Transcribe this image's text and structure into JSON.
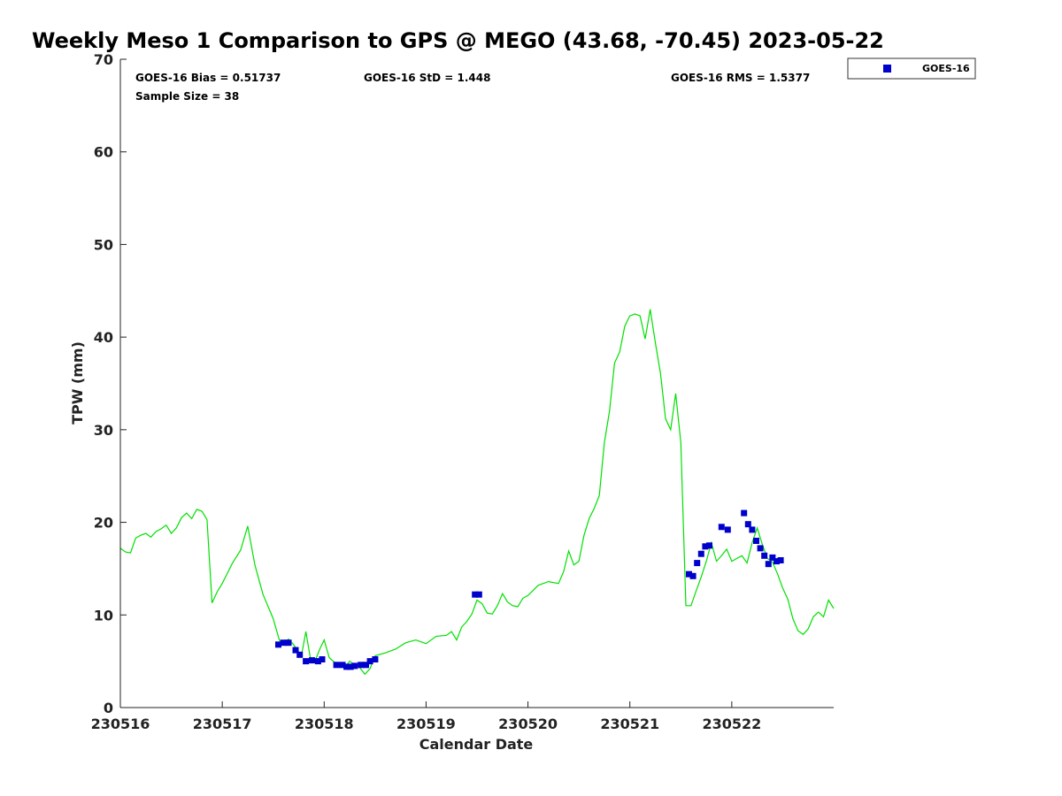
{
  "chart_data": {
    "type": "line",
    "title": "Weekly Meso 1 Comparison to GPS @ MEGO (43.68, -70.45) 2023-05-22",
    "xlabel": "Calendar Date",
    "ylabel": "TPW (mm)",
    "xlim": [
      230516,
      230523
    ],
    "ylim": [
      0,
      70
    ],
    "x_ticks": [
      230516,
      230517,
      230518,
      230519,
      230520,
      230521,
      230522
    ],
    "x_tick_labels": [
      "230516",
      "230517",
      "230518",
      "230519",
      "230520",
      "230521",
      "230522"
    ],
    "y_ticks": [
      0,
      10,
      20,
      30,
      40,
      50,
      60,
      70
    ],
    "y_tick_labels": [
      "0",
      "10",
      "20",
      "30",
      "40",
      "50",
      "60",
      "70"
    ],
    "stats": {
      "bias": "GOES-16 Bias = 0.51737",
      "std": "GOES-16 StD = 1.448",
      "rms": "GOES-16 RMS = 1.5377",
      "sample": "Sample Size = 38"
    },
    "legend": {
      "position": "outside-top-right",
      "entries": [
        {
          "name": "GOES-16",
          "color": "#0000cc",
          "marker": "square"
        }
      ]
    },
    "series": [
      {
        "kind": "line",
        "color": "#00e000",
        "x": [
          230516.0,
          230516.05,
          230516.1,
          230516.15,
          230516.2,
          230516.25,
          230516.3,
          230516.35,
          230516.4,
          230516.45,
          230516.5,
          230516.55,
          230516.6,
          230516.65,
          230516.7,
          230516.75,
          230516.8,
          230516.85,
          230516.9,
          230516.95,
          230517.0,
          230517.1,
          230517.18,
          230517.25,
          230517.32,
          230517.4,
          230517.5,
          230517.56,
          230517.6,
          230517.65,
          230517.7,
          230517.75,
          230517.78,
          230517.82,
          230517.87,
          230517.92,
          230517.96,
          230518.0,
          230518.05,
          230518.1,
          230518.15,
          230518.2,
          230518.25,
          230518.3,
          230518.35,
          230518.4,
          230518.45,
          230518.5,
          230518.6,
          230518.7,
          230518.8,
          230518.9,
          230519.0,
          230519.1,
          230519.2,
          230519.25,
          230519.3,
          230519.35,
          230519.4,
          230519.45,
          230519.5,
          230519.55,
          230519.6,
          230519.65,
          230519.7,
          230519.75,
          230519.8,
          230519.85,
          230519.9,
          230519.95,
          230520.0,
          230520.1,
          230520.2,
          230520.3,
          230520.35,
          230520.4,
          230520.45,
          230520.5,
          230520.55,
          230520.6,
          230520.65,
          230520.7,
          230520.75,
          230520.8,
          230520.85,
          230520.9,
          230520.95,
          230521.0,
          230521.05,
          230521.1,
          230521.15,
          230521.2,
          230521.25,
          230521.3,
          230521.35,
          230521.4,
          230521.45,
          230521.5,
          230521.55,
          230521.6,
          230521.65,
          230521.7,
          230521.75,
          230521.8,
          230521.85,
          230521.9,
          230521.95,
          230522.0,
          230522.05,
          230522.1,
          230522.15,
          230522.2,
          230522.25,
          230522.3,
          230522.35,
          230522.4,
          230522.45,
          230522.5,
          230522.55,
          230522.6,
          230522.65,
          230522.7,
          230522.75,
          230522.8,
          230522.85,
          230522.9,
          230522.95,
          230523.0
        ],
        "y": [
          17.2,
          16.8,
          16.7,
          18.3,
          18.6,
          18.8,
          18.4,
          19.0,
          19.3,
          19.7,
          18.8,
          19.4,
          20.5,
          21.0,
          20.4,
          21.4,
          21.2,
          20.3,
          11.3,
          12.5,
          13.4,
          15.6,
          17.0,
          19.6,
          15.4,
          12.2,
          9.6,
          7.3,
          6.8,
          7.4,
          6.8,
          6.0,
          5.8,
          8.2,
          5.0,
          5.3,
          6.4,
          7.3,
          5.4,
          4.9,
          4.6,
          4.3,
          5.0,
          4.6,
          4.3,
          3.6,
          4.2,
          5.6,
          5.9,
          6.3,
          7.0,
          7.3,
          6.9,
          7.7,
          7.8,
          8.2,
          7.3,
          8.7,
          9.3,
          10.1,
          11.6,
          11.2,
          10.2,
          10.1,
          11.0,
          12.3,
          11.4,
          11.0,
          10.9,
          11.8,
          12.1,
          13.2,
          13.6,
          13.4,
          14.7,
          16.9,
          15.4,
          15.8,
          18.6,
          20.4,
          21.5,
          22.9,
          28.6,
          32.0,
          37.2,
          38.4,
          41.2,
          42.3,
          42.5,
          42.3,
          39.8,
          43.0,
          39.4,
          36.1,
          31.2,
          30.0,
          33.9,
          28.6,
          11.0,
          11.0,
          12.6,
          14.1,
          15.8,
          17.8,
          15.8,
          16.4,
          17.1,
          15.8,
          16.1,
          16.4,
          15.6,
          17.8,
          19.4,
          17.6,
          16.1,
          15.7,
          14.4,
          12.9,
          11.7,
          9.6,
          8.3,
          7.9,
          8.5,
          9.8,
          10.3,
          9.8,
          11.6,
          10.7
        ]
      },
      {
        "kind": "scatter",
        "name": "GOES-16",
        "color": "#0000cc",
        "x": [
          230517.55,
          230517.6,
          230517.65,
          230517.72,
          230517.76,
          230517.82,
          230517.88,
          230517.94,
          230517.98,
          230518.12,
          230518.18,
          230518.22,
          230518.26,
          230518.3,
          230518.36,
          230518.41,
          230518.45,
          230518.5,
          230519.48,
          230519.52,
          230521.58,
          230521.62,
          230521.66,
          230521.7,
          230521.74,
          230521.78,
          230521.9,
          230521.96,
          230522.12,
          230522.16,
          230522.2,
          230522.24,
          230522.28,
          230522.32,
          230522.36,
          230522.4,
          230522.44,
          230522.48
        ],
        "y": [
          6.8,
          7.0,
          7.0,
          6.2,
          5.7,
          5.0,
          5.1,
          5.0,
          5.2,
          4.6,
          4.6,
          4.4,
          4.4,
          4.5,
          4.6,
          4.6,
          5.0,
          5.2,
          12.2,
          12.2,
          14.4,
          14.2,
          15.6,
          16.6,
          17.4,
          17.5,
          19.5,
          19.2,
          21.0,
          19.8,
          19.2,
          18.0,
          17.2,
          16.4,
          15.5,
          16.2,
          15.8,
          15.9
        ]
      }
    ]
  }
}
